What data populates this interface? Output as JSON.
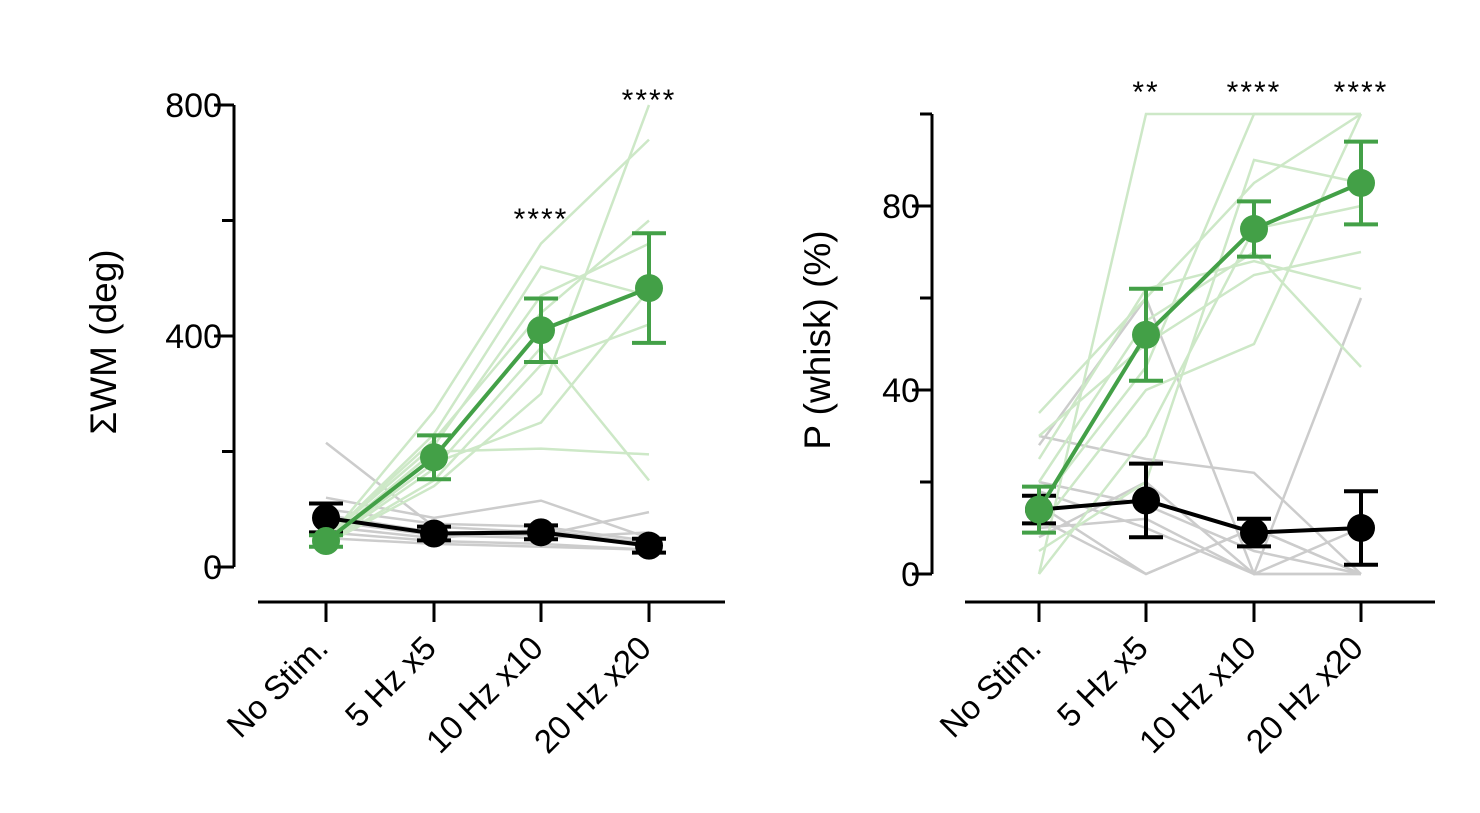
{
  "colors": {
    "stim_mean": "#43A047",
    "stim_individual": "#CDE8C7",
    "control_mean": "#000000",
    "control_individual": "#CCCCCC"
  },
  "chart_data": [
    {
      "type": "line",
      "title": "",
      "xlabel": "",
      "ylabel": "ΣWM (deg)",
      "categories": [
        "No Stim.",
        "5 Hz x5",
        "10 Hz x10",
        "20 Hz x20"
      ],
      "ylim": [
        0,
        800
      ],
      "yticks": [
        0,
        400,
        800
      ],
      "yticks_minor": [
        200,
        600
      ],
      "yticks_labels": [
        "0",
        "400",
        "800"
      ],
      "series": [
        {
          "name": "stim_mean",
          "values": [
            45,
            190,
            410,
            483
          ],
          "err": [
            10,
            38,
            55,
            95
          ]
        },
        {
          "name": "control_mean",
          "values": [
            85,
            58,
            60,
            37
          ],
          "err": [
            25,
            12,
            12,
            12
          ]
        }
      ],
      "individual_stim": [
        [
          40,
          140,
          300,
          800
        ],
        [
          45,
          270,
          560,
          740
        ],
        [
          50,
          220,
          440,
          600
        ],
        [
          42,
          180,
          250,
          480
        ],
        [
          40,
          170,
          380,
          150
        ],
        [
          45,
          200,
          205,
          195
        ],
        [
          48,
          230,
          520,
          470
        ],
        [
          40,
          150,
          350,
          420
        ],
        [
          50,
          210,
          470,
          560
        ]
      ],
      "individual_control": [
        [
          215,
          70,
          60,
          35
        ],
        [
          120,
          85,
          115,
          50
        ],
        [
          90,
          60,
          55,
          95
        ],
        [
          70,
          50,
          65,
          40
        ],
        [
          60,
          45,
          40,
          30
        ],
        [
          50,
          40,
          35,
          30
        ],
        [
          100,
          75,
          70,
          45
        ],
        [
          80,
          55,
          50,
          60
        ]
      ],
      "annotations": [
        "",
        "",
        "****",
        "****"
      ]
    },
    {
      "type": "line",
      "title": "",
      "xlabel": "",
      "ylabel": "P (whisk) (%)",
      "categories": [
        "No Stim.",
        "5 Hz x5",
        "10 Hz x10",
        "20 Hz x20"
      ],
      "ylim": [
        0,
        100
      ],
      "yticks": [
        0,
        40,
        80
      ],
      "yticks_minor": [
        20,
        60,
        100
      ],
      "yticks_labels": [
        "0",
        "40",
        "80"
      ],
      "series": [
        {
          "name": "stim_mean",
          "values": [
            14,
            52,
            75,
            85
          ],
          "err": [
            5,
            10,
            6,
            9
          ]
        },
        {
          "name": "control_mean",
          "values": [
            14,
            16,
            9,
            10
          ],
          "err": [
            3,
            8,
            3,
            8
          ]
        }
      ],
      "individual_stim": [
        [
          0,
          100,
          100,
          100
        ],
        [
          35,
          60,
          85,
          100
        ],
        [
          20,
          55,
          70,
          45
        ],
        [
          25,
          62,
          68,
          62
        ],
        [
          10,
          40,
          50,
          100
        ],
        [
          0,
          30,
          75,
          80
        ],
        [
          15,
          45,
          100,
          100
        ],
        [
          5,
          20,
          90,
          85
        ],
        [
          30,
          50,
          65,
          70
        ]
      ],
      "individual_control": [
        [
          28,
          60,
          0,
          0
        ],
        [
          30,
          25,
          22,
          0
        ],
        [
          18,
          10,
          0,
          60
        ],
        [
          12,
          0,
          10,
          0
        ],
        [
          20,
          15,
          5,
          0
        ],
        [
          10,
          12,
          0,
          10
        ],
        [
          15,
          0,
          10,
          0
        ],
        [
          8,
          20,
          0,
          0
        ]
      ],
      "annotations": [
        "",
        "**",
        "****",
        "****"
      ]
    }
  ]
}
